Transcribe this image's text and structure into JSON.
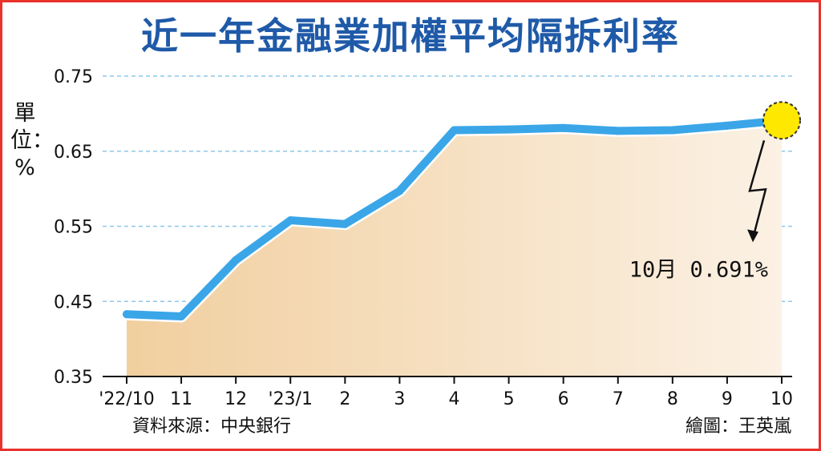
{
  "chart_data": {
    "type": "area",
    "title": "近一年金融業加權平均隔拆利率",
    "ylabel": "單位：%",
    "ylim": [
      0.35,
      0.75
    ],
    "yticks": [
      "0.75",
      "0.65",
      "0.55",
      "0.45",
      "0.35"
    ],
    "categories": [
      "'22/10",
      "11",
      "12",
      "'23/1",
      "2",
      "3",
      "4",
      "5",
      "6",
      "7",
      "8",
      "9",
      "10"
    ],
    "values": [
      0.433,
      0.43,
      0.505,
      0.558,
      0.553,
      0.597,
      0.678,
      0.679,
      0.681,
      0.677,
      0.678,
      0.684,
      0.691
    ],
    "grid": true,
    "annotation": {
      "text": "10月 0.691%",
      "target_index": 12
    }
  },
  "colors": {
    "title": "#1f5aa8",
    "line": "#3aa6e8",
    "fill": "#f3d6ad",
    "highlight": "#ffe800",
    "grid": "#8ec7ea",
    "border": "#e8322b"
  },
  "footer": {
    "source": "資料來源：中央銀行",
    "credit": "繪圖：王英嵐"
  }
}
